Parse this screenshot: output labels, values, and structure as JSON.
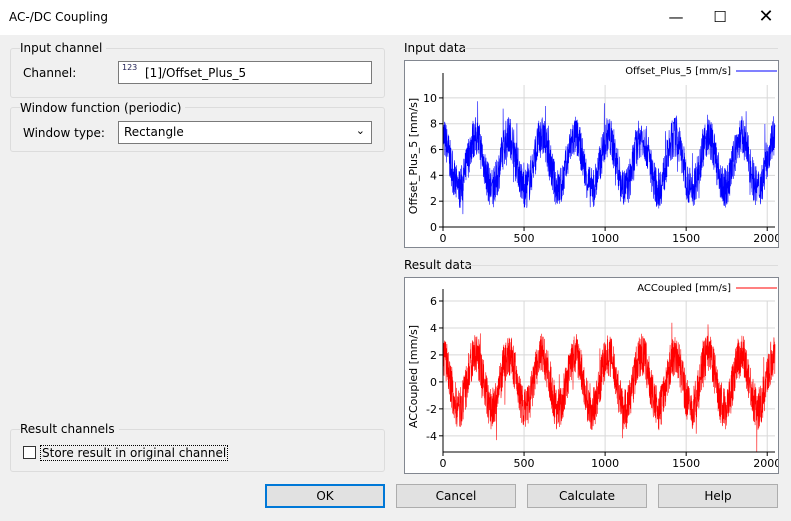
{
  "window": {
    "title": "AC-/DC Coupling",
    "minimize_icon": "minimize-icon",
    "maximize_icon": "maximize-icon",
    "close_icon": "close-icon"
  },
  "input_channel": {
    "group_label": "Input channel",
    "channel_label": "Channel:",
    "channel_value": "[1]/Offset_Plus_5",
    "channel_icon": "numeric-channel-icon",
    "channel_icon_text": "123"
  },
  "window_function": {
    "group_label": "Window function (periodic)",
    "type_label": "Window type:",
    "type_value": "Rectangle"
  },
  "result_channels": {
    "group_label": "Result channels",
    "store_label": "Store result in original channel",
    "store_checked": false
  },
  "buttons": {
    "ok": "OK",
    "cancel": "Cancel",
    "calculate": "Calculate",
    "help": "Help"
  },
  "input_data_label": "Input data",
  "result_data_label": "Result data",
  "chart_data": [
    {
      "type": "line",
      "ylabel": "Offset_Plus_5 [mm/s]",
      "legend": "Offset_Plus_5 [mm/s]",
      "legend_position": "top-right",
      "color": "#0000ff",
      "xlim": [
        0,
        2048
      ],
      "ylim": [
        0,
        11
      ],
      "xticks": [
        0,
        500,
        1000,
        1500,
        2000
      ],
      "yticks": [
        0,
        2,
        4,
        6,
        8,
        10
      ],
      "grid": true,
      "mean_level": 5,
      "cycle_period_samples": 205,
      "amplitude": 2,
      "min": 0,
      "max": 11.1
    },
    {
      "type": "line",
      "ylabel": "ACCoupled [mm/s]",
      "legend": "ACCoupled [mm/s]",
      "legend_position": "top-right",
      "color": "#ff0000",
      "xlim": [
        0,
        2048
      ],
      "ylim": [
        -5.2,
        6
      ],
      "xticks": [
        0,
        500,
        1000,
        1500,
        2000
      ],
      "yticks": [
        -4,
        -2,
        0,
        2,
        4,
        6
      ],
      "grid": true,
      "mean_level": 0,
      "cycle_period_samples": 205,
      "amplitude": 2,
      "min": -5.2,
      "max": 6
    }
  ]
}
